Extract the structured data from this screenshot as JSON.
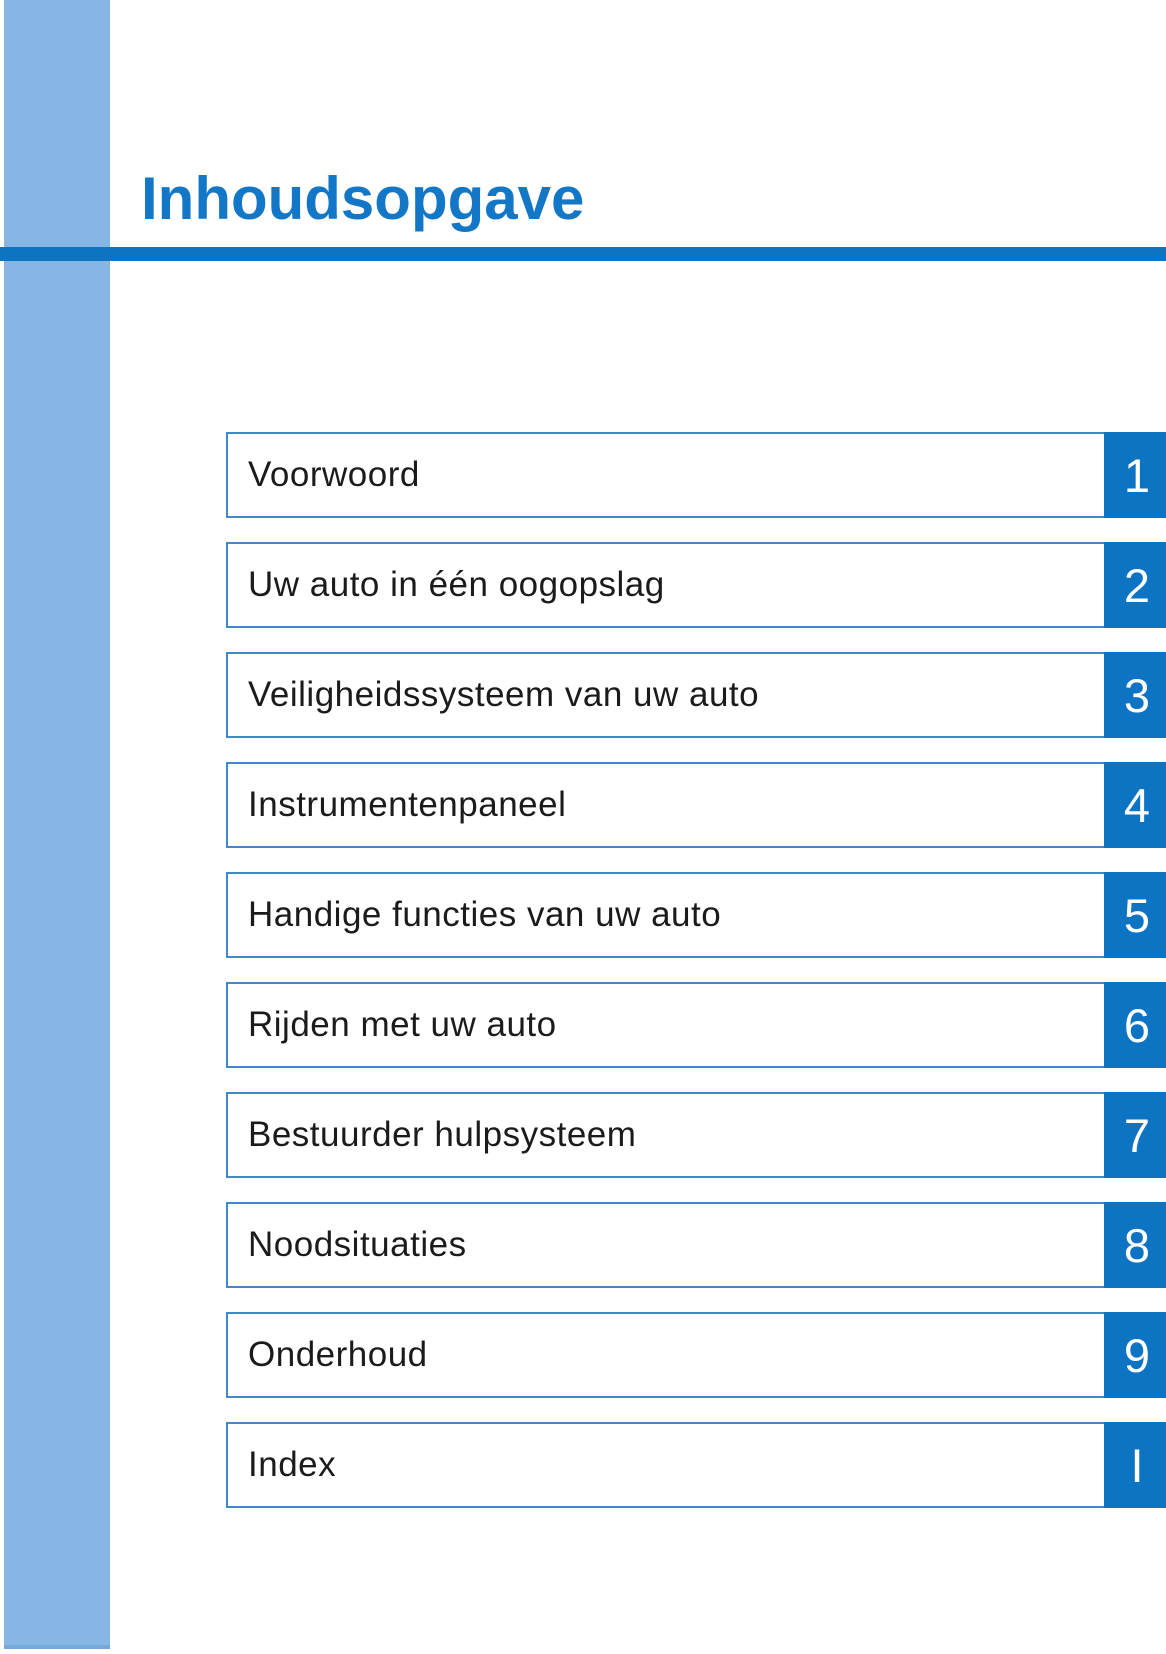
{
  "page": {
    "title": "Inhoudsopgave"
  },
  "colors": {
    "accent_blue": "#0d73c3",
    "title_blue": "#1377c8",
    "sidebar_light_blue": "#86b6e3",
    "sidebar_bottom_edge": "#74a8d9",
    "box_border_blue": "#4089c6",
    "text_dark": "#1b1b1d",
    "page_background": "#ffffff"
  },
  "toc": {
    "items": [
      {
        "label": "Voorwoord",
        "number": "1"
      },
      {
        "label": "Uw auto in één oogopslag",
        "number": "2"
      },
      {
        "label": "Veiligheidssysteem van uw auto",
        "number": "3"
      },
      {
        "label": "Instrumentenpaneel",
        "number": "4"
      },
      {
        "label": "Handige functies van uw auto",
        "number": "5"
      },
      {
        "label": "Rijden met uw auto",
        "number": "6"
      },
      {
        "label": "Bestuurder hulpsysteem",
        "number": "7"
      },
      {
        "label": "Noodsituaties",
        "number": "8"
      },
      {
        "label": "Onderhoud",
        "number": "9"
      },
      {
        "label": "Index",
        "number": "I"
      }
    ]
  }
}
